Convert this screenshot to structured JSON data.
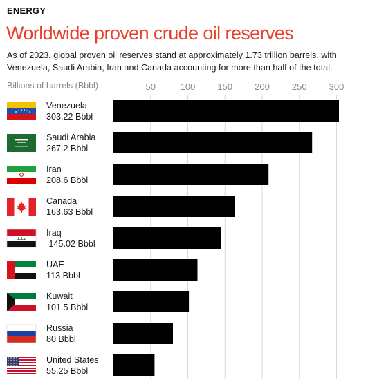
{
  "header": {
    "kicker": "ENERGY",
    "title": "Worldwide proven crude oil reserves",
    "subtitle": "As of 2023, global proven oil reserves stand at approximately 1.73 trillion barrels, with Venezuela, Saudi Arabia, Iran and Canada accounting for more than half of the total."
  },
  "colors": {
    "title": "#e8402a",
    "bar": "#000000",
    "gridline": "#d9d9d9",
    "tick": "#8a8a8a"
  },
  "chart_data": {
    "type": "bar",
    "orientation": "horizontal",
    "title": "Worldwide proven crude oil reserves",
    "xlabel": "Billions of barrels (Bbbl)",
    "ylabel": "",
    "xlim": [
      0,
      300
    ],
    "ticks": [
      50,
      100,
      150,
      200,
      250,
      300
    ],
    "tick_position": "top",
    "grid": true,
    "categories": [
      "Venezuela",
      "Saudi Arabia",
      "Iran",
      "Canada",
      "Iraq",
      "UAE",
      "Kuwait",
      "Russia",
      "United States"
    ],
    "values": [
      303.22,
      267.2,
      208.6,
      163.63,
      145.02,
      113,
      101.5,
      80,
      55.25
    ],
    "value_labels": [
      "303.22 Bbbl",
      "267.2 Bbbl",
      "208.6 Bbbl",
      "163.63 Bbbl",
      " 145.02 Bbbl",
      "113 Bbbl",
      "101.5 Bbbl",
      "80 Bbbl",
      "55.25 Bbbl"
    ],
    "flags": [
      "venezuela-flag-icon",
      "saudi-arabia-flag-icon",
      "iran-flag-icon",
      "canada-flag-icon",
      "iraq-flag-icon",
      "uae-flag-icon",
      "kuwait-flag-icon",
      "russia-flag-icon",
      "united-states-flag-icon"
    ]
  }
}
